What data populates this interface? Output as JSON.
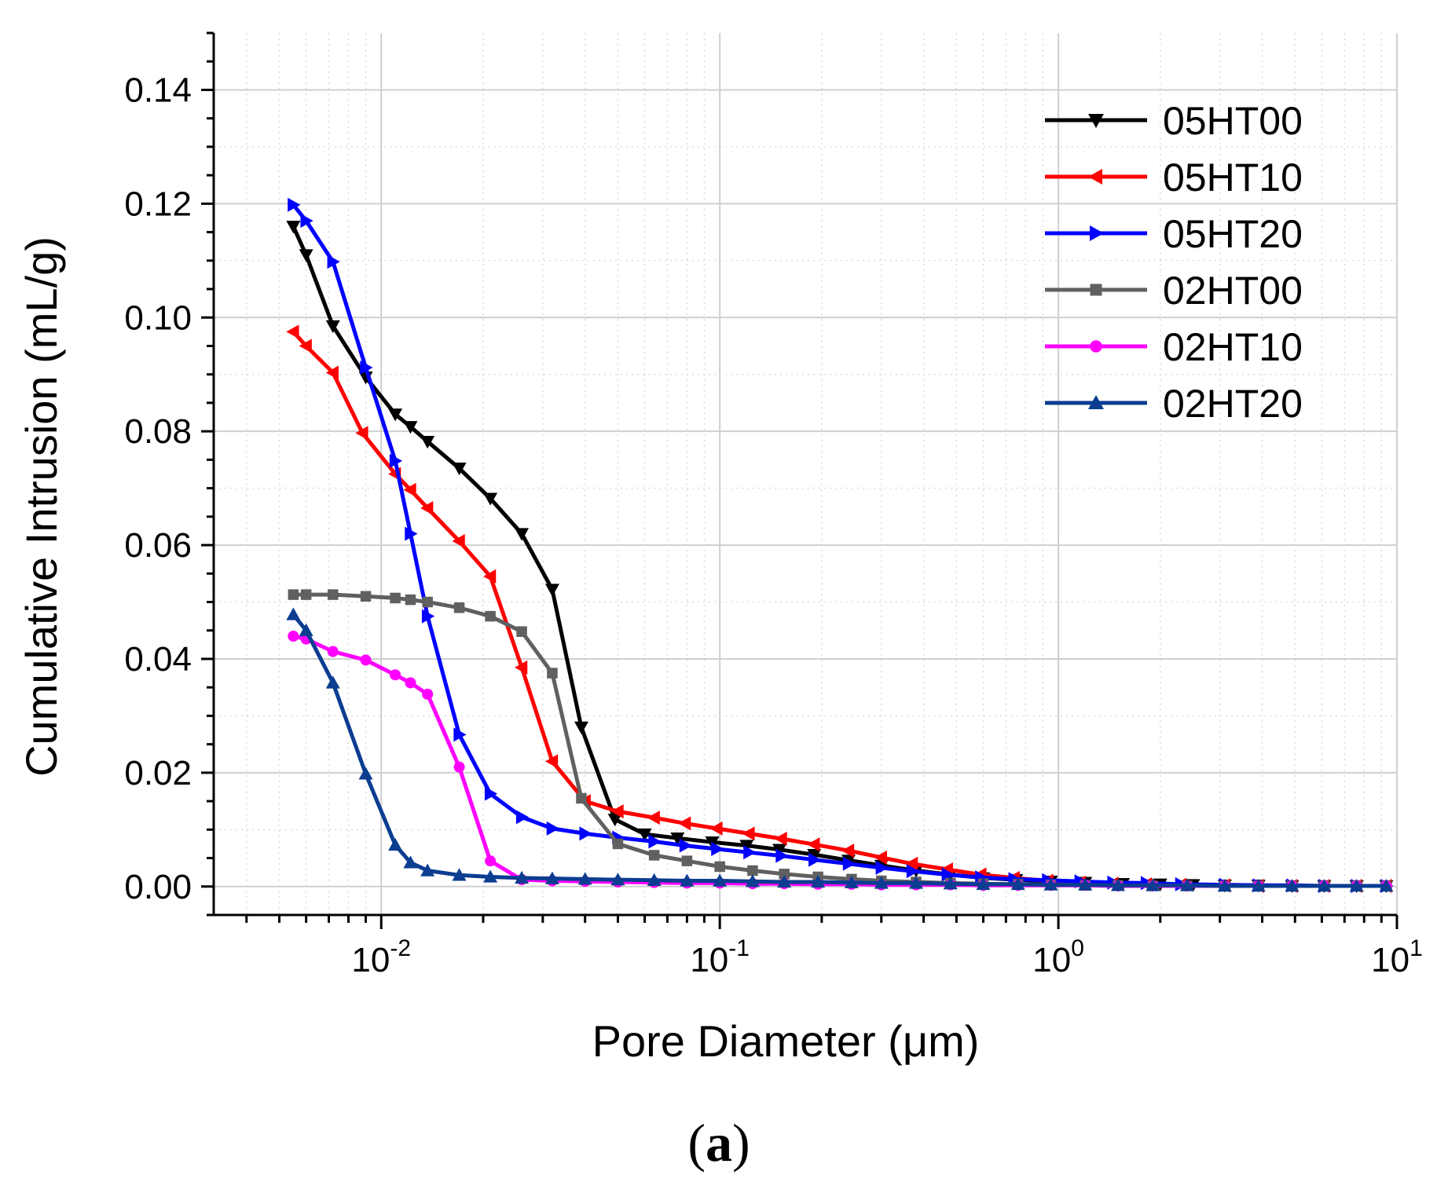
{
  "caption": {
    "open": "(",
    "letter": "a",
    "close": ")"
  },
  "chart_data": {
    "type": "line",
    "xscale": "log",
    "xlabel": "Pore Diameter (μm)",
    "ylabel": "Cumulative Intrusion (mL/g)",
    "xlim": [
      0.0032,
      10
    ],
    "ylim": [
      -0.005,
      0.15
    ],
    "xticks": [
      {
        "value": 0.01,
        "base": "10",
        "exp": "-2"
      },
      {
        "value": 0.1,
        "base": "10",
        "exp": "-1"
      },
      {
        "value": 1,
        "base": "10",
        "exp": "0"
      },
      {
        "value": 10,
        "base": "10",
        "exp": "1"
      }
    ],
    "yticks": [
      {
        "value": 0.0,
        "label": "0.00"
      },
      {
        "value": 0.02,
        "label": "0.02"
      },
      {
        "value": 0.04,
        "label": "0.04"
      },
      {
        "value": 0.06,
        "label": "0.06"
      },
      {
        "value": 0.08,
        "label": "0.08"
      },
      {
        "value": 0.1,
        "label": "0.10"
      },
      {
        "value": 0.12,
        "label": "0.12"
      },
      {
        "value": 0.14,
        "label": "0.14"
      }
    ],
    "grid": true,
    "legend_position": "top-right",
    "series": [
      {
        "name": "05HT00",
        "color": "#000000",
        "marker": "triangle-down",
        "points": [
          [
            0.0055,
            0.116
          ],
          [
            0.006,
            0.111
          ],
          [
            0.0072,
            0.0985
          ],
          [
            0.009,
            0.0895
          ],
          [
            0.011,
            0.083
          ],
          [
            0.0122,
            0.0808
          ],
          [
            0.0137,
            0.0782
          ],
          [
            0.017,
            0.0735
          ],
          [
            0.021,
            0.0682
          ],
          [
            0.026,
            0.062
          ],
          [
            0.032,
            0.0522
          ],
          [
            0.039,
            0.028
          ],
          [
            0.049,
            0.0118
          ],
          [
            0.06,
            0.0092
          ],
          [
            0.075,
            0.0085
          ],
          [
            0.095,
            0.0078
          ],
          [
            0.12,
            0.0072
          ],
          [
            0.15,
            0.0065
          ],
          [
            0.19,
            0.0056
          ],
          [
            0.24,
            0.0046
          ],
          [
            0.3,
            0.0037
          ],
          [
            0.38,
            0.0028
          ],
          [
            0.48,
            0.0021
          ],
          [
            0.6,
            0.0015
          ],
          [
            0.75,
            0.0012
          ],
          [
            0.95,
            0.0009
          ],
          [
            1.2,
            0.0007
          ],
          [
            1.55,
            0.0005
          ],
          [
            2.0,
            0.0004
          ],
          [
            2.5,
            0.0003
          ],
          [
            3.1,
            0.0002
          ],
          [
            3.9,
            0.0002
          ],
          [
            4.9,
            0.0001
          ],
          [
            6.1,
            0.0001
          ],
          [
            7.6,
            0.0001
          ],
          [
            9.3,
            0.0001
          ]
        ]
      },
      {
        "name": "05HT10",
        "color": "#ff0000",
        "marker": "triangle-left",
        "points": [
          [
            0.0055,
            0.0975
          ],
          [
            0.006,
            0.095
          ],
          [
            0.0072,
            0.0903
          ],
          [
            0.0088,
            0.0797
          ],
          [
            0.011,
            0.0725
          ],
          [
            0.0122,
            0.0697
          ],
          [
            0.0137,
            0.0665
          ],
          [
            0.017,
            0.0607
          ],
          [
            0.021,
            0.0545
          ],
          [
            0.026,
            0.0385
          ],
          [
            0.032,
            0.022
          ],
          [
            0.04,
            0.015
          ],
          [
            0.05,
            0.0132
          ],
          [
            0.064,
            0.0121
          ],
          [
            0.079,
            0.0111
          ],
          [
            0.098,
            0.0102
          ],
          [
            0.122,
            0.0093
          ],
          [
            0.152,
            0.0084
          ],
          [
            0.19,
            0.0074
          ],
          [
            0.24,
            0.0063
          ],
          [
            0.3,
            0.0051
          ],
          [
            0.37,
            0.004
          ],
          [
            0.47,
            0.003
          ],
          [
            0.59,
            0.0021
          ],
          [
            0.74,
            0.0015
          ],
          [
            0.93,
            0.001
          ],
          [
            1.16,
            0.0007
          ],
          [
            1.45,
            0.0005
          ],
          [
            1.82,
            0.0004
          ],
          [
            2.3,
            0.0003
          ],
          [
            3.1,
            0.0002
          ],
          [
            3.9,
            0.0001
          ],
          [
            4.9,
            0.0001
          ],
          [
            6.1,
            0.0001
          ],
          [
            7.6,
            0.0001
          ],
          [
            9.3,
            0.0001
          ]
        ]
      },
      {
        "name": "05HT20",
        "color": "#0000ff",
        "marker": "triangle-right",
        "points": [
          [
            0.0055,
            0.1198
          ],
          [
            0.006,
            0.117
          ],
          [
            0.0072,
            0.1098
          ],
          [
            0.009,
            0.0912
          ],
          [
            0.011,
            0.0748
          ],
          [
            0.0122,
            0.062
          ],
          [
            0.0137,
            0.0475
          ],
          [
            0.017,
            0.0267
          ],
          [
            0.021,
            0.0163
          ],
          [
            0.026,
            0.0122
          ],
          [
            0.032,
            0.0102
          ],
          [
            0.04,
            0.0093
          ],
          [
            0.05,
            0.0086
          ],
          [
            0.064,
            0.0079
          ],
          [
            0.079,
            0.0072
          ],
          [
            0.098,
            0.0066
          ],
          [
            0.122,
            0.006
          ],
          [
            0.152,
            0.0054
          ],
          [
            0.19,
            0.0047
          ],
          [
            0.24,
            0.004
          ],
          [
            0.3,
            0.0033
          ],
          [
            0.37,
            0.0027
          ],
          [
            0.47,
            0.0021
          ],
          [
            0.59,
            0.0016
          ],
          [
            0.74,
            0.0013
          ],
          [
            0.93,
            0.0011
          ],
          [
            1.16,
            0.0009
          ],
          [
            1.45,
            0.0007
          ],
          [
            1.82,
            0.0006
          ],
          [
            2.3,
            0.0004
          ],
          [
            3.1,
            0.0003
          ],
          [
            3.9,
            0.0002
          ],
          [
            4.9,
            0.0002
          ],
          [
            6.1,
            0.0001
          ],
          [
            7.6,
            0.0001
          ],
          [
            9.3,
            0.0001
          ]
        ]
      },
      {
        "name": "02HT00",
        "color": "#606060",
        "marker": "square",
        "points": [
          [
            0.0055,
            0.0513
          ],
          [
            0.006,
            0.0513
          ],
          [
            0.0072,
            0.0513
          ],
          [
            0.009,
            0.051
          ],
          [
            0.011,
            0.0507
          ],
          [
            0.0122,
            0.0504
          ],
          [
            0.0137,
            0.05
          ],
          [
            0.017,
            0.049
          ],
          [
            0.021,
            0.0475
          ],
          [
            0.026,
            0.0448
          ],
          [
            0.032,
            0.0375
          ],
          [
            0.039,
            0.0155
          ],
          [
            0.05,
            0.0075
          ],
          [
            0.064,
            0.0055
          ],
          [
            0.08,
            0.0045
          ],
          [
            0.1,
            0.0035
          ],
          [
            0.125,
            0.0028
          ],
          [
            0.155,
            0.0022
          ],
          [
            0.195,
            0.0017
          ],
          [
            0.245,
            0.0013
          ],
          [
            0.3,
            0.001
          ],
          [
            0.38,
            0.0008
          ],
          [
            0.48,
            0.0006
          ],
          [
            0.6,
            0.0005
          ],
          [
            0.76,
            0.0004
          ],
          [
            0.95,
            0.0003
          ],
          [
            1.2,
            0.0002
          ],
          [
            1.5,
            0.0002
          ],
          [
            1.9,
            0.0001
          ],
          [
            2.4,
            0.0001
          ],
          [
            3.1,
            0.0001
          ],
          [
            3.9,
            0.0001
          ],
          [
            4.9,
            0.0001
          ],
          [
            6.1,
            0.0001
          ],
          [
            7.6,
            0.0001
          ],
          [
            9.3,
            0.0001
          ]
        ]
      },
      {
        "name": "02HT10",
        "color": "#ff00ff",
        "marker": "circle",
        "points": [
          [
            0.0055,
            0.044
          ],
          [
            0.006,
            0.0435
          ],
          [
            0.0072,
            0.0413
          ],
          [
            0.009,
            0.0398
          ],
          [
            0.011,
            0.0372
          ],
          [
            0.0122,
            0.0358
          ],
          [
            0.0137,
            0.0338
          ],
          [
            0.017,
            0.021
          ],
          [
            0.021,
            0.0045
          ],
          [
            0.026,
            0.0012
          ],
          [
            0.032,
            0.001
          ],
          [
            0.04,
            0.0009
          ],
          [
            0.05,
            0.0008
          ],
          [
            0.064,
            0.0007
          ],
          [
            0.08,
            0.0006
          ],
          [
            0.1,
            0.0006
          ],
          [
            0.125,
            0.0005
          ],
          [
            0.155,
            0.0005
          ],
          [
            0.195,
            0.0004
          ],
          [
            0.245,
            0.0004
          ],
          [
            0.3,
            0.0003
          ],
          [
            0.38,
            0.0003
          ],
          [
            0.48,
            0.0003
          ],
          [
            0.6,
            0.0002
          ],
          [
            0.76,
            0.0002
          ],
          [
            0.95,
            0.0002
          ],
          [
            1.2,
            0.0002
          ],
          [
            1.5,
            0.0001
          ],
          [
            1.9,
            0.0001
          ],
          [
            2.4,
            0.0001
          ],
          [
            3.1,
            0.0001
          ],
          [
            3.9,
            0.0001
          ],
          [
            4.9,
            0.0001
          ],
          [
            6.1,
            0.0001
          ],
          [
            7.6,
            0.0001
          ],
          [
            9.3,
            0.0001
          ]
        ]
      },
      {
        "name": "02HT20",
        "color": "#0b3d91",
        "marker": "triangle-up",
        "points": [
          [
            0.0055,
            0.0478
          ],
          [
            0.006,
            0.045
          ],
          [
            0.0072,
            0.0358
          ],
          [
            0.009,
            0.0198
          ],
          [
            0.011,
            0.0073
          ],
          [
            0.0122,
            0.0042
          ],
          [
            0.0137,
            0.0028
          ],
          [
            0.017,
            0.002
          ],
          [
            0.021,
            0.0017
          ],
          [
            0.026,
            0.0015
          ],
          [
            0.032,
            0.0014
          ],
          [
            0.04,
            0.0013
          ],
          [
            0.05,
            0.0012
          ],
          [
            0.064,
            0.0011
          ],
          [
            0.08,
            0.001
          ],
          [
            0.1,
            0.001
          ],
          [
            0.125,
            0.0009
          ],
          [
            0.155,
            0.0008
          ],
          [
            0.195,
            0.0008
          ],
          [
            0.245,
            0.0007
          ],
          [
            0.3,
            0.0006
          ],
          [
            0.38,
            0.0006
          ],
          [
            0.48,
            0.0005
          ],
          [
            0.6,
            0.0004
          ],
          [
            0.76,
            0.0004
          ],
          [
            0.95,
            0.0003
          ],
          [
            1.2,
            0.0003
          ],
          [
            1.5,
            0.0002
          ],
          [
            1.9,
            0.0002
          ],
          [
            2.4,
            0.0002
          ],
          [
            3.1,
            0.0001
          ],
          [
            3.9,
            0.0001
          ],
          [
            4.9,
            0.0001
          ],
          [
            6.1,
            0.0001
          ],
          [
            7.6,
            0.0001
          ],
          [
            9.3,
            0.0001
          ]
        ]
      }
    ]
  }
}
